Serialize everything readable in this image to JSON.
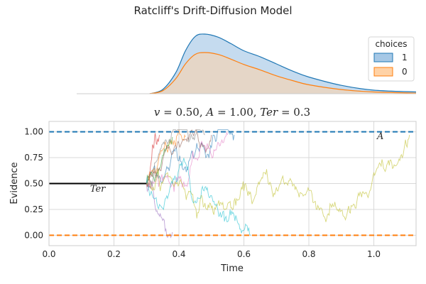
{
  "figure": {
    "suptitle": "Ratcliff's Drift-Diffusion Model"
  },
  "density_panel": {
    "legend_title": "choices",
    "series": [
      {
        "name": "1",
        "line_color": "#1f77b4",
        "fill_color": "#a6c8e6",
        "x": [
          0.31,
          0.35,
          0.39,
          0.42,
          0.45,
          0.48,
          0.52,
          0.56,
          0.6,
          0.65,
          0.7,
          0.75,
          0.8,
          0.9,
          1.0,
          1.13
        ],
        "y": [
          0.0,
          0.07,
          0.35,
          0.72,
          0.96,
          1.0,
          0.95,
          0.84,
          0.72,
          0.62,
          0.5,
          0.38,
          0.28,
          0.14,
          0.06,
          0.03
        ]
      },
      {
        "name": "0",
        "line_color": "#ff7f0e",
        "fill_color": "#ffd2a6",
        "x": [
          0.31,
          0.35,
          0.39,
          0.42,
          0.45,
          0.48,
          0.52,
          0.56,
          0.6,
          0.65,
          0.7,
          0.75,
          0.8,
          0.9,
          1.0,
          1.13
        ],
        "y": [
          0.0,
          0.05,
          0.25,
          0.5,
          0.66,
          0.69,
          0.66,
          0.58,
          0.49,
          0.4,
          0.3,
          0.22,
          0.15,
          0.07,
          0.03,
          0.01
        ]
      }
    ]
  },
  "chart_data": {
    "type": "line",
    "title": "v = 0.50, A = 1.00, Ter = 0.3",
    "title_parts": {
      "v": "0.50",
      "A": "1.00",
      "Ter": "0.3"
    },
    "xlabel": "Time",
    "ylabel": "Evidence",
    "xlim": [
      0.0,
      1.13
    ],
    "ylim": [
      -0.1,
      1.1
    ],
    "xticks": [
      "0.0",
      "0.2",
      "0.4",
      "0.6",
      "0.8",
      "1.0"
    ],
    "yticks": [
      "0.00",
      "0.25",
      "0.50",
      "0.75",
      "1.00"
    ],
    "grid": true,
    "upper_threshold": {
      "value": 1.0,
      "label": "A",
      "color": "#1f77b4"
    },
    "lower_threshold": {
      "value": 0.0,
      "color": "#ff7f0e"
    },
    "non_decision": {
      "start": 0.0,
      "end": 0.3,
      "value": 0.5,
      "label": "Ter"
    },
    "paths": [
      {
        "color": "#1f77b4",
        "end_time": 0.57,
        "end_value": 0.97
      },
      {
        "color": "#ff7f0e",
        "end_time": 0.42,
        "end_value": 0.95
      },
      {
        "color": "#2ca02c",
        "end_time": 0.38,
        "end_value": 0.95
      },
      {
        "color": "#d62728",
        "end_time": 0.34,
        "end_value": 0.97
      },
      {
        "color": "#9467bd",
        "end_time": 0.38,
        "end_value": 0.03
      },
      {
        "color": "#8c564b",
        "end_time": 0.5,
        "end_value": 0.97
      },
      {
        "color": "#e377c2",
        "end_time": 0.55,
        "end_value": 0.97
      },
      {
        "color": "#7f7f7f",
        "end_time": 0.48,
        "end_value": 0.97
      },
      {
        "color": "#bcbd22",
        "end_time": 1.11,
        "end_value": 0.97
      },
      {
        "color": "#17becf",
        "end_time": 0.62,
        "end_value": 0.0
      }
    ]
  }
}
